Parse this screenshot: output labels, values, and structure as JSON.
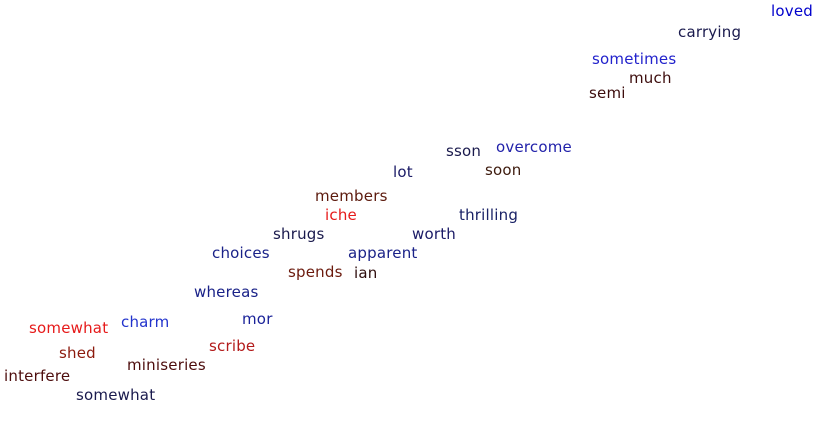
{
  "words": [
    {
      "text": "loved",
      "color": "#0000cc"
    },
    {
      "text": "carrying",
      "color": "#1a1a4d"
    },
    {
      "text": "sometimes",
      "color": "#2222cc"
    },
    {
      "text": "much",
      "color": "#3d0d0d"
    },
    {
      "text": "semi",
      "color": "#3d0d0d"
    },
    {
      "text": "sson",
      "color": "#1a1a4d"
    },
    {
      "text": "overcome",
      "color": "#2222aa"
    },
    {
      "text": "soon",
      "color": "#3d1a0d"
    },
    {
      "text": "lot",
      "color": "#1a1a66"
    },
    {
      "text": "members",
      "color": "#5c1a0d"
    },
    {
      "text": "iche",
      "color": "#e61a1a"
    },
    {
      "text": "thrilling",
      "color": "#1a2266"
    },
    {
      "text": "shrugs",
      "color": "#1a1a4d"
    },
    {
      "text": "worth",
      "color": "#1a1a66"
    },
    {
      "text": "choices",
      "color": "#1a2288"
    },
    {
      "text": "apparent",
      "color": "#1a2288"
    },
    {
      "text": "spends",
      "color": "#6b1a0d"
    },
    {
      "text": "ian",
      "color": "#2e0d0d"
    },
    {
      "text": "whereas",
      "color": "#1a2288"
    },
    {
      "text": "mor",
      "color": "#1a2299"
    },
    {
      "text": "charm",
      "color": "#2233cc"
    },
    {
      "text": "somewhat",
      "color": "#e61a1a"
    },
    {
      "text": "scribe",
      "color": "#b31a1a"
    },
    {
      "text": "shed",
      "color": "#8c1a0d"
    },
    {
      "text": "miniseries",
      "color": "#4d0d0d"
    },
    {
      "text": "interfere",
      "color": "#4d0d0d"
    },
    {
      "text": "somewhat",
      "color": "#1a1a4d"
    }
  ]
}
